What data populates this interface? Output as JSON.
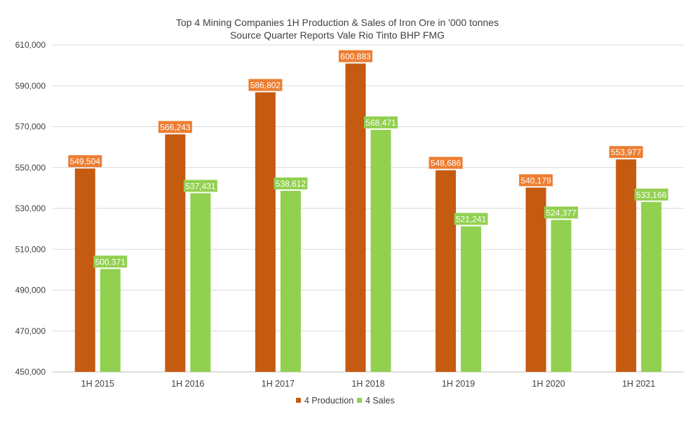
{
  "chart_data": {
    "type": "bar",
    "title": "Top 4 Mining Companies 1H Production & Sales of Iron Ore in '000 tonnes",
    "subtitle": "Source Quarter Reports Vale Rio Tinto BHP FMG",
    "categories": [
      "1H 2015",
      "1H 2016",
      "1H 2017",
      "1H 2018",
      "1H 2019",
      "1H 2020",
      "1H 2021"
    ],
    "series": [
      {
        "name": "4 Production",
        "color": "#c55a11",
        "label_color": "#ed7d31",
        "values": [
          549504,
          566243,
          586802,
          600883,
          548686,
          540179,
          553977
        ],
        "labels": [
          "549,504",
          "566,243",
          "586,802",
          "600,883",
          "548,686",
          "540,179",
          "553,977"
        ]
      },
      {
        "name": "4 Sales",
        "color": "#92d050",
        "label_color": "#92d050",
        "values": [
          500371,
          537431,
          538612,
          568471,
          521241,
          524377,
          533166
        ],
        "labels": [
          "500,371",
          "537,431",
          "538,612",
          "568,471",
          "521,241",
          "524,377",
          "533,166"
        ]
      }
    ],
    "yticks": [
      450000,
      470000,
      490000,
      510000,
      530000,
      550000,
      570000,
      590000,
      610000
    ],
    "ytick_labels": [
      "450,000",
      "470,000",
      "490,000",
      "510,000",
      "530,000",
      "550,000",
      "570,000",
      "590,000",
      "610,000"
    ],
    "ylim": [
      450000,
      610000
    ],
    "grid": true,
    "legend_position": "bottom",
    "xlabel": "",
    "ylabel": ""
  }
}
